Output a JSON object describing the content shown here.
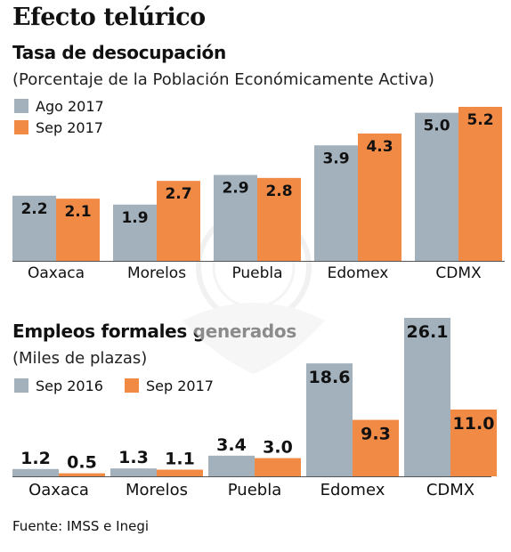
{
  "title": "Efecto telúrico",
  "colors": {
    "gray": "#a3b1bd",
    "orange": "#f08a45",
    "baseline": "#555555",
    "watermark": "#eeeeee"
  },
  "source": "Fuente: IMSS e Inegi",
  "chart_data": [
    {
      "type": "bar",
      "title": "Tasa de desocupación",
      "subtitle": "(Porcentaje de la Población Económicamente Activa)",
      "categories": [
        "Oaxaca",
        "Morelos",
        "Puebla",
        "Edomex",
        "CDMX"
      ],
      "series": [
        {
          "name": "Ago 2017",
          "values": [
            2.2,
            1.9,
            2.9,
            3.9,
            5.0
          ],
          "labels": [
            "2.2",
            "1.9",
            "2.9",
            "3.9",
            "5.0"
          ],
          "color": "#a3b1bd"
        },
        {
          "name": "Sep 2017",
          "values": [
            2.1,
            2.7,
            2.8,
            4.3,
            5.2
          ],
          "labels": [
            "2.1",
            "2.7",
            "2.8",
            "4.3",
            "5.2"
          ],
          "color": "#f08a45"
        }
      ],
      "ylim": [
        0,
        5.2
      ],
      "grid": false,
      "legend": "top-left"
    },
    {
      "type": "bar",
      "title": "Empleos formales generados",
      "subtitle": "(Miles de plazas)",
      "categories": [
        "Oaxaca",
        "Morelos",
        "Puebla",
        "Edomex",
        "CDMX"
      ],
      "series": [
        {
          "name": "Sep 2016",
          "values": [
            1.2,
            1.3,
            3.4,
            18.6,
            26.1
          ],
          "labels": [
            "1.2",
            "1.3",
            "3.4",
            "18.6",
            "26.1"
          ],
          "color": "#a3b1bd"
        },
        {
          "name": "Sep 2017",
          "values": [
            0.5,
            1.1,
            3.0,
            9.3,
            11.0
          ],
          "labels": [
            "0.5",
            "1.1",
            "3.0",
            "9.3",
            "11.0"
          ],
          "color": "#f08a45"
        }
      ],
      "ylim": [
        0,
        26.1
      ],
      "grid": false,
      "legend": "top-left"
    }
  ]
}
